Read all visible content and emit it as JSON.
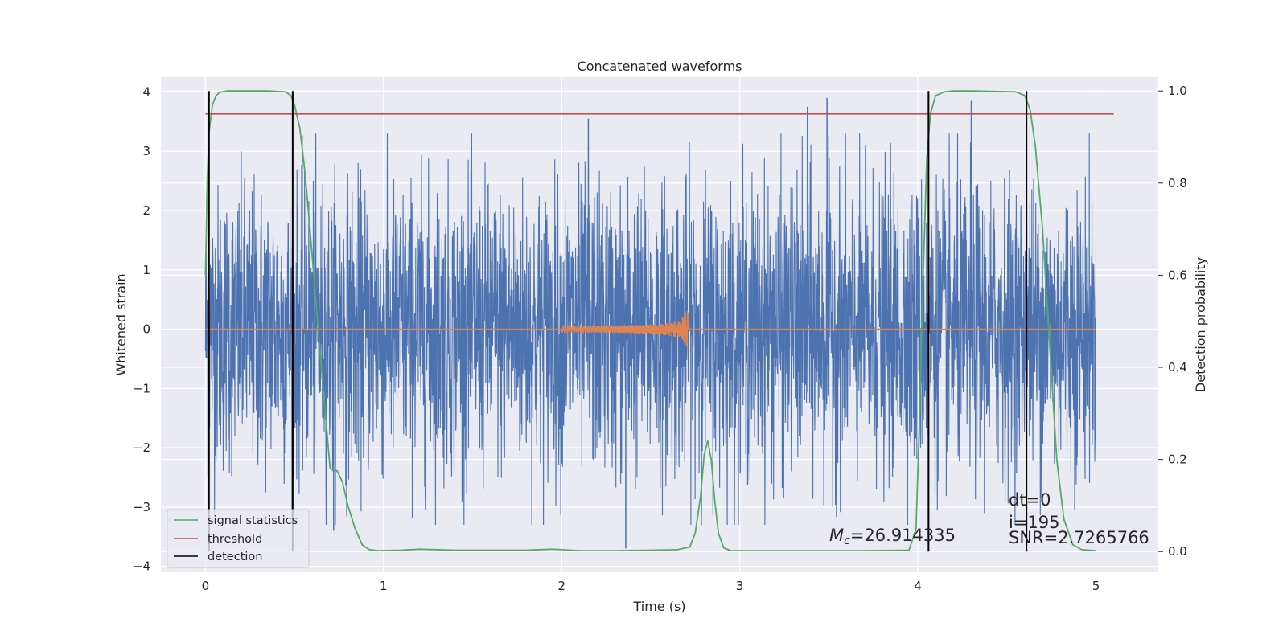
{
  "chart_data": {
    "type": "line",
    "title": "Concatenated waveforms",
    "xlabel": "Time (s)",
    "ylabel": "Whitened strain",
    "y2label": "Detection probability",
    "xlim": [
      -0.25,
      5.35
    ],
    "ylim": [
      -4.1,
      4.25
    ],
    "y2lim": [
      -0.045,
      1.03
    ],
    "xticks": [
      0,
      1,
      2,
      3,
      4,
      5
    ],
    "yticks": [
      -4,
      -3,
      -2,
      -1,
      0,
      1,
      2,
      3,
      4
    ],
    "y2ticks": [
      0.0,
      0.2,
      0.4,
      0.6,
      0.8,
      1.0
    ],
    "grid": true,
    "legend_position": "lower-left",
    "colors": {
      "strain": "#4c72b0",
      "template": "#dd8452",
      "signal_statistics": "#55a868",
      "threshold": "#c44e52",
      "detection": "#000000",
      "plot_bg": "#eaeaf2",
      "grid": "#ffffff"
    },
    "series": [
      {
        "name": "whitened strain",
        "axis": "left",
        "kind": "noise",
        "x_range": [
          0,
          5
        ],
        "typical_envelope": 2.0,
        "outliers": [
          [
            2.15,
            3.55
          ],
          [
            2.36,
            -3.7
          ],
          [
            3.38,
            3.75
          ],
          [
            3.49,
            3.9
          ],
          [
            4.3,
            3.85
          ],
          [
            4.06,
            -3.55
          ],
          [
            0.72,
            -3.4
          ]
        ]
      },
      {
        "name": "template",
        "axis": "left",
        "kind": "chirp",
        "x_range": [
          0,
          5
        ],
        "chirp_start": 2.0,
        "chirp_end": 2.71,
        "peak_amplitude": 0.6
      },
      {
        "name": "signal statistics",
        "axis": "right",
        "x": [
          0.0,
          0.01,
          0.02,
          0.04,
          0.06,
          0.08,
          0.12,
          0.2,
          0.35,
          0.45,
          0.48,
          0.5,
          0.53,
          0.56,
          0.6,
          0.64,
          0.68,
          0.7,
          0.74,
          0.77,
          0.8,
          0.84,
          0.88,
          0.92,
          0.97,
          1.1,
          1.2,
          1.4,
          1.6,
          1.8,
          1.95,
          2.0,
          2.1,
          2.3,
          2.5,
          2.65,
          2.72,
          2.75,
          2.78,
          2.8,
          2.82,
          2.84,
          2.86,
          2.88,
          2.91,
          2.95,
          3.1,
          3.4,
          3.7,
          3.95,
          3.99,
          4.01,
          4.03,
          4.05,
          4.07,
          4.1,
          4.15,
          4.2,
          4.3,
          4.55,
          4.6,
          4.63,
          4.66,
          4.7,
          4.74,
          4.78,
          4.82,
          4.87,
          4.92,
          5.0
        ],
        "y": [
          0.6,
          0.8,
          0.91,
          0.97,
          0.99,
          0.997,
          1.0,
          1.0,
          1.0,
          0.998,
          0.99,
          0.97,
          0.92,
          0.82,
          0.64,
          0.45,
          0.27,
          0.18,
          0.175,
          0.15,
          0.1,
          0.05,
          0.015,
          0.004,
          0.002,
          0.003,
          0.005,
          0.003,
          0.003,
          0.003,
          0.005,
          0.004,
          0.002,
          0.002,
          0.003,
          0.004,
          0.01,
          0.04,
          0.12,
          0.21,
          0.24,
          0.2,
          0.11,
          0.04,
          0.008,
          0.002,
          0.002,
          0.002,
          0.002,
          0.003,
          0.05,
          0.3,
          0.6,
          0.85,
          0.95,
          0.99,
          0.998,
          1.0,
          1.0,
          0.998,
          0.99,
          0.96,
          0.88,
          0.7,
          0.45,
          0.2,
          0.07,
          0.015,
          0.004,
          0.002
        ]
      },
      {
        "name": "threshold",
        "axis": "right",
        "x": [
          0.0,
          5.1
        ],
        "y": [
          0.95,
          0.95
        ]
      },
      {
        "name": "detection",
        "axis": "right",
        "kind": "vertical-lines",
        "x": [
          0.02,
          0.49,
          4.06,
          4.61
        ],
        "y_range": [
          0.0,
          1.0
        ]
      }
    ],
    "legend": [
      "signal statistics",
      "threshold",
      "detection"
    ],
    "annotations": {
      "mc_symbol": "M",
      "mc_subscript": "c",
      "mc_value": "=26.914335",
      "dt": "dt=0",
      "i": "i=195",
      "snr": "SNR=2.7265766"
    }
  }
}
